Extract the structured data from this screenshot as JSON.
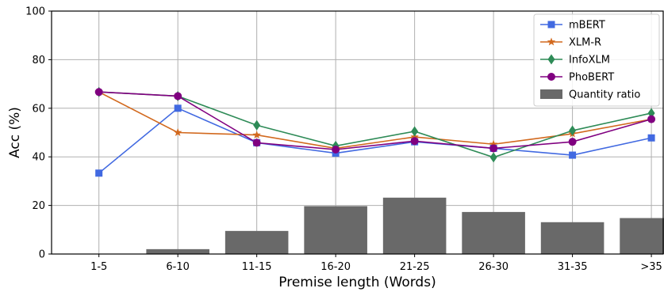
{
  "chart_data": {
    "type": "bar+line",
    "title": "",
    "xlabel": "Premise length (Words)",
    "ylabel": "Acc (%)",
    "ylim": [
      0,
      100
    ],
    "yticks": [
      0,
      20,
      40,
      60,
      80,
      100
    ],
    "grid": true,
    "legend_position": "top-right",
    "categories": [
      "1-5",
      "6-10",
      "11-15",
      "16-20",
      "21-25",
      "26-30",
      "31-35",
      ">35"
    ],
    "bars": {
      "name": "Quantity ratio",
      "color": "#696969",
      "values": [
        0,
        2,
        9.5,
        19.7,
        23.2,
        17.3,
        13.1,
        14.8
      ]
    },
    "series": [
      {
        "name": "mBERT",
        "color": "#4169e1",
        "marker": "square",
        "values": [
          33.3,
          60.0,
          45.8,
          41.5,
          46.2,
          43.5,
          40.7,
          47.8
        ]
      },
      {
        "name": "XLM-R",
        "color": "#d2691e",
        "marker": "star",
        "values": [
          66.7,
          50.0,
          49.0,
          43.5,
          48.2,
          45.2,
          49.5,
          55.5
        ]
      },
      {
        "name": "InfoXLM",
        "color": "#2e8b57",
        "marker": "diamond",
        "values": [
          66.7,
          65.0,
          53.0,
          44.5,
          50.5,
          39.8,
          50.8,
          58.0
        ]
      },
      {
        "name": "PhoBERT",
        "color": "#800080",
        "marker": "circle",
        "values": [
          66.7,
          65.0,
          45.8,
          43.0,
          46.5,
          43.5,
          46.2,
          55.5
        ]
      }
    ]
  }
}
